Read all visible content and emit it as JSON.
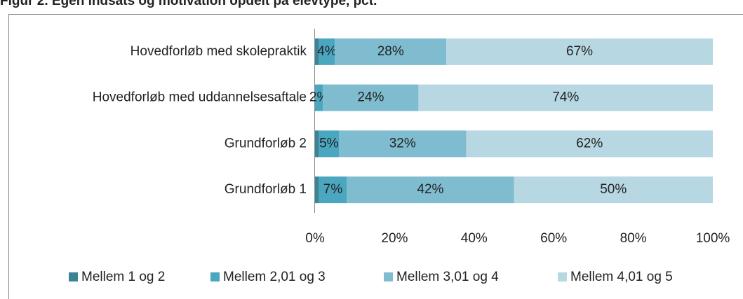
{
  "chart_data": {
    "type": "bar",
    "orientation": "horizontal",
    "stacked": true,
    "title": "Figur 2. Egen indsats og motivation opdelt på elevtype, pct.",
    "categories": [
      "Hovedforløb med skolepraktik",
      "Hovedforløb med uddannelsesaftale",
      "Grundforløb 2",
      "Grundforløb 1"
    ],
    "series": [
      {
        "name": "Mellem 1 og 2",
        "color": "#3b8397",
        "values": [
          1,
          0,
          1,
          1
        ]
      },
      {
        "name": "Mellem 2,01 og 3",
        "color": "#4ba7c0",
        "values": [
          4,
          2,
          5,
          7
        ],
        "value_labels": [
          "4%",
          "2%",
          "5%",
          "7%"
        ]
      },
      {
        "name": "Mellem 3,01 og 4",
        "color": "#7fbcd0",
        "values": [
          28,
          24,
          32,
          42
        ],
        "value_labels": [
          "28%",
          "24%",
          "32%",
          "42%"
        ]
      },
      {
        "name": "Mellem 4,01 og 5",
        "color": "#b7d8e2",
        "values": [
          67,
          74,
          62,
          50
        ],
        "value_labels": [
          "67%",
          "74%",
          "62%",
          "50%"
        ]
      }
    ],
    "xlim": [
      0,
      100
    ],
    "xticks": [
      {
        "value": 0,
        "label": "0%"
      },
      {
        "value": 20,
        "label": "20%"
      },
      {
        "value": 40,
        "label": "40%"
      },
      {
        "value": 60,
        "label": "60%"
      },
      {
        "value": 80,
        "label": "80%"
      },
      {
        "value": 100,
        "label": "100%"
      }
    ],
    "legend": "bottom"
  }
}
